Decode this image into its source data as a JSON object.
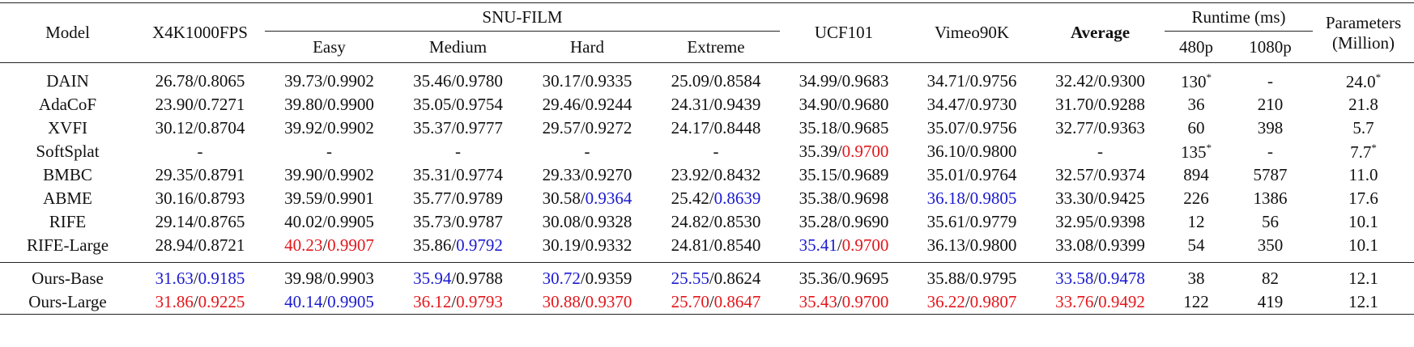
{
  "header": {
    "model": "Model",
    "x4k": "X4K1000FPS",
    "snu": "SNU-FILM",
    "snu_sub": [
      "Easy",
      "Medium",
      "Hard",
      "Extreme"
    ],
    "ucf": "UCF101",
    "vimeo": "Vimeo90K",
    "average": "Average",
    "runtime": "Runtime (ms)",
    "runtime_sub": [
      "480p",
      "1080p"
    ],
    "params": [
      "Parameters",
      "(Million)"
    ]
  },
  "table": {
    "groups": [
      [
        {
          "model": "DAIN",
          "cells": [
            [
              "26.78/0.8065"
            ],
            [
              "39.73/0.9902"
            ],
            [
              "35.46/0.9780"
            ],
            [
              "30.17/0.9335"
            ],
            [
              "25.09/0.8584"
            ],
            [
              "34.99/0.9683"
            ],
            [
              "34.71/0.9756"
            ],
            [
              "32.42/0.9300"
            ],
            [
              "130",
              {
                "text": "*",
                "sup": true
              }
            ],
            [
              "-"
            ],
            [
              "24.0",
              {
                "text": "*",
                "sup": true
              }
            ]
          ]
        },
        {
          "model": "AdaCoF",
          "cells": [
            [
              "23.90/0.7271"
            ],
            [
              "39.80/0.9900"
            ],
            [
              "35.05/0.9754"
            ],
            [
              "29.46/0.9244"
            ],
            [
              "24.31/0.9439"
            ],
            [
              "34.90/0.9680"
            ],
            [
              "34.47/0.9730"
            ],
            [
              "31.70/0.9288"
            ],
            [
              "36"
            ],
            [
              "210"
            ],
            [
              "21.8"
            ]
          ]
        },
        {
          "model": "XVFI",
          "cells": [
            [
              "30.12/0.8704"
            ],
            [
              "39.92/0.9902"
            ],
            [
              "35.37/0.9777"
            ],
            [
              "29.57/0.9272"
            ],
            [
              "24.17/0.8448"
            ],
            [
              "35.18/0.9685"
            ],
            [
              "35.07/0.9756"
            ],
            [
              "32.77/0.9363"
            ],
            [
              "60"
            ],
            [
              "398"
            ],
            [
              "5.7"
            ]
          ]
        },
        {
          "model": "SoftSplat",
          "cells": [
            [
              "-"
            ],
            [
              "-"
            ],
            [
              "-"
            ],
            [
              "-"
            ],
            [
              "-"
            ],
            [
              "35.39/",
              {
                "text": "0.9700",
                "color": "#e3161b"
              }
            ],
            [
              "36.10/0.9800"
            ],
            [
              "-"
            ],
            [
              "135",
              {
                "text": "*",
                "sup": true
              }
            ],
            [
              "-"
            ],
            [
              "7.7",
              {
                "text": "*",
                "sup": true
              }
            ]
          ]
        },
        {
          "model": "BMBC",
          "cells": [
            [
              "29.35/0.8791"
            ],
            [
              "39.90/0.9902"
            ],
            [
              "35.31/0.9774"
            ],
            [
              "29.33/0.9270"
            ],
            [
              "23.92/0.8432"
            ],
            [
              "35.15/0.9689"
            ],
            [
              "35.01/0.9764"
            ],
            [
              "32.57/0.9374"
            ],
            [
              "894"
            ],
            [
              "5787"
            ],
            [
              "11.0"
            ]
          ]
        },
        {
          "model": "ABME",
          "cells": [
            [
              "30.16/0.8793"
            ],
            [
              "39.59/0.9901"
            ],
            [
              "35.77/0.9789"
            ],
            [
              "30.58/",
              {
                "text": "0.9364",
                "color": "#1a1ad0"
              }
            ],
            [
              "25.42/",
              {
                "text": "0.8639",
                "color": "#1a1ad0"
              }
            ],
            [
              "35.38/0.9698"
            ],
            [
              {
                "text": "36.18",
                "color": "#1a1ad0"
              },
              "/",
              {
                "text": "0.9805",
                "color": "#1a1ad0"
              }
            ],
            [
              "33.30/0.9425"
            ],
            [
              "226"
            ],
            [
              "1386"
            ],
            [
              "17.6"
            ]
          ]
        },
        {
          "model": "RIFE",
          "cells": [
            [
              "29.14/0.8765"
            ],
            [
              "40.02/0.9905"
            ],
            [
              "35.73/0.9787"
            ],
            [
              "30.08/0.9328"
            ],
            [
              "24.82/0.8530"
            ],
            [
              "35.28/0.9690"
            ],
            [
              "35.61/0.9779"
            ],
            [
              "32.95/0.9398"
            ],
            [
              "12"
            ],
            [
              "56"
            ],
            [
              "10.1"
            ]
          ]
        },
        {
          "model": "RIFE-Large",
          "cells": [
            [
              "28.94/0.8721"
            ],
            [
              {
                "text": "40.23",
                "color": "#e3161b"
              },
              "/",
              {
                "text": "0.9907",
                "color": "#e3161b"
              }
            ],
            [
              "35.86/",
              {
                "text": "0.9792",
                "color": "#1a1ad0"
              }
            ],
            [
              "30.19/0.9332"
            ],
            [
              "24.81/0.8540"
            ],
            [
              {
                "text": "35.41",
                "color": "#1a1ad0"
              },
              "/",
              {
                "text": "0.9700",
                "color": "#e3161b"
              }
            ],
            [
              "36.13/0.9800"
            ],
            [
              "33.08/0.9399"
            ],
            [
              "54"
            ],
            [
              "350"
            ],
            [
              "10.1"
            ]
          ]
        }
      ],
      [
        {
          "model": "Ours-Base",
          "cells": [
            [
              {
                "text": "31.63",
                "color": "#1a1ad0"
              },
              "/",
              {
                "text": "0.9185",
                "color": "#1a1ad0"
              }
            ],
            [
              "39.98/0.9903"
            ],
            [
              {
                "text": "35.94",
                "color": "#1a1ad0"
              },
              "/0.9788"
            ],
            [
              {
                "text": "30.72",
                "color": "#1a1ad0"
              },
              "/0.9359"
            ],
            [
              {
                "text": "25.55",
                "color": "#1a1ad0"
              },
              "/0.8624"
            ],
            [
              "35.36/0.9695"
            ],
            [
              "35.88/0.9795"
            ],
            [
              {
                "text": "33.58",
                "color": "#1a1ad0"
              },
              "/",
              {
                "text": "0.9478",
                "color": "#1a1ad0"
              }
            ],
            [
              "38"
            ],
            [
              "82"
            ],
            [
              "12.1"
            ]
          ]
        },
        {
          "model": "Ours-Large",
          "cells": [
            [
              {
                "text": "31.86",
                "color": "#e3161b"
              },
              "/",
              {
                "text": "0.9225",
                "color": "#e3161b"
              }
            ],
            [
              {
                "text": "40.14",
                "color": "#1a1ad0"
              },
              "/",
              {
                "text": "0.9905",
                "color": "#1a1ad0"
              }
            ],
            [
              {
                "text": "36.12",
                "color": "#e3161b"
              },
              "/",
              {
                "text": "0.9793",
                "color": "#e3161b"
              }
            ],
            [
              {
                "text": "30.88",
                "color": "#e3161b"
              },
              "/",
              {
                "text": "0.9370",
                "color": "#e3161b"
              }
            ],
            [
              {
                "text": "25.70",
                "color": "#e3161b"
              },
              "/",
              {
                "text": "0.8647",
                "color": "#e3161b"
              }
            ],
            [
              {
                "text": "35.43",
                "color": "#e3161b"
              },
              "/",
              {
                "text": "0.9700",
                "color": "#e3161b"
              }
            ],
            [
              {
                "text": "36.22",
                "color": "#e3161b"
              },
              "/",
              {
                "text": "0.9807",
                "color": "#e3161b"
              }
            ],
            [
              {
                "text": "33.76",
                "color": "#e3161b"
              },
              "/",
              {
                "text": "0.9492",
                "color": "#e3161b"
              }
            ],
            [
              "122"
            ],
            [
              "419"
            ],
            [
              "12.1"
            ]
          ]
        }
      ]
    ]
  }
}
